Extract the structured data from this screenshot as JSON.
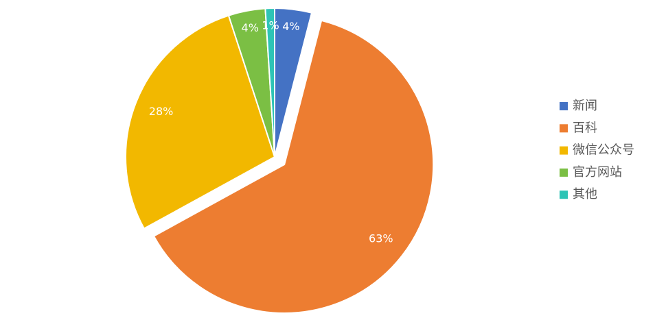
{
  "chart_data": {
    "type": "pie",
    "categories": [
      "新闻",
      "百科",
      "微信公众号",
      "官方网站",
      "其他"
    ],
    "values": [
      4,
      63,
      28,
      4,
      1
    ],
    "value_labels": [
      "4%",
      "63%",
      "28%",
      "4%",
      "1%"
    ],
    "colors": [
      "#4472c4",
      "#ed7d31",
      "#f2b800",
      "#7bbf44",
      "#2ec4b6"
    ],
    "explode": [
      1
    ],
    "legend": "right"
  }
}
